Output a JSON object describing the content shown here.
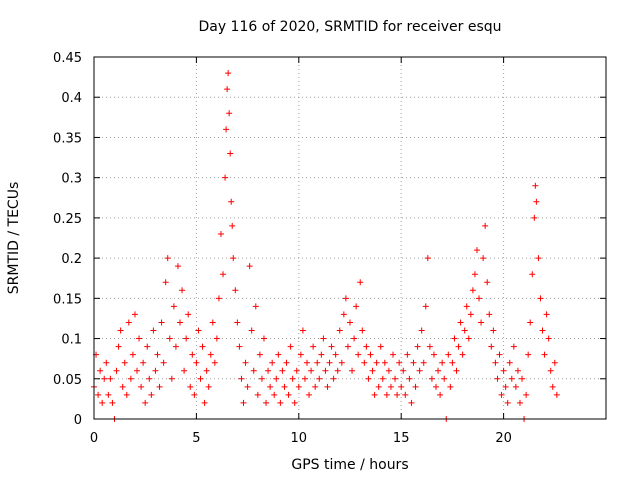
{
  "chart_data": {
    "type": "scatter",
    "title": "Day 116 of 2020, SRMTID for receiver esqu",
    "xlabel": "GPS time / hours",
    "ylabel": "SRMTID / TECUs",
    "xlim": [
      0,
      25
    ],
    "ylim": [
      0,
      0.45
    ],
    "grid": true,
    "marker": "+",
    "x_ticks": [
      {
        "value": 0,
        "label": "0"
      },
      {
        "value": 5,
        "label": "5"
      },
      {
        "value": 10,
        "label": "10"
      },
      {
        "value": 15,
        "label": "15"
      },
      {
        "value": 20,
        "label": "20"
      }
    ],
    "y_ticks": [
      {
        "value": 0,
        "label": "0"
      },
      {
        "value": 0.05,
        "label": "0.05"
      },
      {
        "value": 0.1,
        "label": "0.1"
      },
      {
        "value": 0.15,
        "label": "0.15"
      },
      {
        "value": 0.2,
        "label": "0.2"
      },
      {
        "value": 0.25,
        "label": "0.25"
      },
      {
        "value": 0.3,
        "label": "0.3"
      },
      {
        "value": 0.35,
        "label": "0.35"
      },
      {
        "value": 0.4,
        "label": "0.4"
      },
      {
        "value": 0.45,
        "label": "0.45"
      }
    ],
    "series": [
      {
        "name": "SRMTID",
        "color": "#ff0000",
        "points": [
          [
            0.0,
            0.04
          ],
          [
            0.1,
            0.08
          ],
          [
            0.2,
            0.03
          ],
          [
            0.3,
            0.06
          ],
          [
            0.4,
            0.02
          ],
          [
            0.5,
            0.05
          ],
          [
            0.6,
            0.07
          ],
          [
            0.7,
            0.03
          ],
          [
            0.8,
            0.05
          ],
          [
            0.9,
            0.02
          ],
          [
            1.0,
            0.0
          ],
          [
            1.1,
            0.06
          ],
          [
            1.2,
            0.09
          ],
          [
            1.3,
            0.11
          ],
          [
            1.4,
            0.04
          ],
          [
            1.5,
            0.07
          ],
          [
            1.6,
            0.03
          ],
          [
            1.7,
            0.12
          ],
          [
            1.8,
            0.05
          ],
          [
            1.9,
            0.08
          ],
          [
            2.0,
            0.13
          ],
          [
            2.1,
            0.06
          ],
          [
            2.2,
            0.1
          ],
          [
            2.3,
            0.04
          ],
          [
            2.4,
            0.07
          ],
          [
            2.5,
            0.02
          ],
          [
            2.6,
            0.09
          ],
          [
            2.7,
            0.05
          ],
          [
            2.8,
            0.03
          ],
          [
            2.9,
            0.11
          ],
          [
            3.0,
            0.06
          ],
          [
            3.1,
            0.08
          ],
          [
            3.2,
            0.04
          ],
          [
            3.3,
            0.12
          ],
          [
            3.4,
            0.07
          ],
          [
            3.5,
            0.17
          ],
          [
            3.6,
            0.2
          ],
          [
            3.7,
            0.1
          ],
          [
            3.8,
            0.05
          ],
          [
            3.9,
            0.14
          ],
          [
            4.0,
            0.09
          ],
          [
            4.1,
            0.19
          ],
          [
            4.2,
            0.12
          ],
          [
            4.3,
            0.16
          ],
          [
            4.4,
            0.06
          ],
          [
            4.5,
            0.1
          ],
          [
            4.6,
            0.13
          ],
          [
            4.7,
            0.04
          ],
          [
            4.8,
            0.08
          ],
          [
            4.9,
            0.03
          ],
          [
            5.0,
            0.07
          ],
          [
            5.1,
            0.11
          ],
          [
            5.2,
            0.05
          ],
          [
            5.3,
            0.09
          ],
          [
            5.4,
            0.02
          ],
          [
            5.5,
            0.06
          ],
          [
            5.6,
            0.04
          ],
          [
            5.7,
            0.08
          ],
          [
            5.8,
            0.12
          ],
          [
            5.9,
            0.07
          ],
          [
            6.0,
            0.1
          ],
          [
            6.1,
            0.15
          ],
          [
            6.2,
            0.23
          ],
          [
            6.3,
            0.18
          ],
          [
            6.4,
            0.3
          ],
          [
            6.45,
            0.36
          ],
          [
            6.5,
            0.41
          ],
          [
            6.55,
            0.43
          ],
          [
            6.6,
            0.38
          ],
          [
            6.65,
            0.33
          ],
          [
            6.7,
            0.27
          ],
          [
            6.75,
            0.24
          ],
          [
            6.8,
            0.2
          ],
          [
            6.9,
            0.16
          ],
          [
            7.0,
            0.12
          ],
          [
            7.1,
            0.09
          ],
          [
            7.2,
            0.05
          ],
          [
            7.3,
            0.02
          ],
          [
            7.4,
            0.07
          ],
          [
            7.5,
            0.04
          ],
          [
            7.6,
            0.19
          ],
          [
            7.7,
            0.11
          ],
          [
            7.8,
            0.06
          ],
          [
            7.9,
            0.14
          ],
          [
            8.0,
            0.03
          ],
          [
            8.1,
            0.08
          ],
          [
            8.2,
            0.05
          ],
          [
            8.3,
            0.1
          ],
          [
            8.4,
            0.02
          ],
          [
            8.5,
            0.06
          ],
          [
            8.6,
            0.04
          ],
          [
            8.7,
            0.07
          ],
          [
            8.8,
            0.03
          ],
          [
            8.9,
            0.05
          ],
          [
            9.0,
            0.08
          ],
          [
            9.1,
            0.02
          ],
          [
            9.2,
            0.06
          ],
          [
            9.3,
            0.04
          ],
          [
            9.4,
            0.07
          ],
          [
            9.5,
            0.03
          ],
          [
            9.6,
            0.09
          ],
          [
            9.7,
            0.05
          ],
          [
            9.8,
            0.02
          ],
          [
            9.9,
            0.06
          ],
          [
            10.0,
            0.04
          ],
          [
            10.1,
            0.08
          ],
          [
            10.2,
            0.11
          ],
          [
            10.3,
            0.05
          ],
          [
            10.4,
            0.07
          ],
          [
            10.5,
            0.03
          ],
          [
            10.6,
            0.06
          ],
          [
            10.7,
            0.09
          ],
          [
            10.8,
            0.04
          ],
          [
            10.9,
            0.07
          ],
          [
            11.0,
            0.05
          ],
          [
            11.1,
            0.08
          ],
          [
            11.2,
            0.1
          ],
          [
            11.3,
            0.06
          ],
          [
            11.4,
            0.04
          ],
          [
            11.5,
            0.07
          ],
          [
            11.6,
            0.09
          ],
          [
            11.7,
            0.05
          ],
          [
            11.8,
            0.08
          ],
          [
            11.9,
            0.06
          ],
          [
            12.0,
            0.11
          ],
          [
            12.1,
            0.07
          ],
          [
            12.2,
            0.13
          ],
          [
            12.3,
            0.15
          ],
          [
            12.4,
            0.09
          ],
          [
            12.5,
            0.12
          ],
          [
            12.6,
            0.06
          ],
          [
            12.7,
            0.1
          ],
          [
            12.8,
            0.14
          ],
          [
            12.9,
            0.08
          ],
          [
            13.0,
            0.17
          ],
          [
            13.1,
            0.11
          ],
          [
            13.2,
            0.07
          ],
          [
            13.3,
            0.09
          ],
          [
            13.4,
            0.05
          ],
          [
            13.5,
            0.08
          ],
          [
            13.6,
            0.06
          ],
          [
            13.7,
            0.03
          ],
          [
            13.8,
            0.07
          ],
          [
            13.9,
            0.04
          ],
          [
            14.0,
            0.09
          ],
          [
            14.1,
            0.05
          ],
          [
            14.2,
            0.07
          ],
          [
            14.3,
            0.03
          ],
          [
            14.4,
            0.06
          ],
          [
            14.5,
            0.04
          ],
          [
            14.6,
            0.08
          ],
          [
            14.7,
            0.05
          ],
          [
            14.8,
            0.03
          ],
          [
            14.9,
            0.07
          ],
          [
            15.0,
            0.04
          ],
          [
            15.1,
            0.06
          ],
          [
            15.2,
            0.03
          ],
          [
            15.3,
            0.08
          ],
          [
            15.4,
            0.05
          ],
          [
            15.5,
            0.02
          ],
          [
            15.6,
            0.07
          ],
          [
            15.7,
            0.04
          ],
          [
            15.8,
            0.09
          ],
          [
            15.9,
            0.06
          ],
          [
            16.0,
            0.11
          ],
          [
            16.1,
            0.07
          ],
          [
            16.2,
            0.14
          ],
          [
            16.3,
            0.2
          ],
          [
            16.4,
            0.09
          ],
          [
            16.5,
            0.05
          ],
          [
            16.6,
            0.08
          ],
          [
            16.7,
            0.04
          ],
          [
            16.8,
            0.06
          ],
          [
            16.9,
            0.03
          ],
          [
            17.0,
            0.07
          ],
          [
            17.1,
            0.05
          ],
          [
            17.2,
            0.0
          ],
          [
            17.3,
            0.08
          ],
          [
            17.4,
            0.04
          ],
          [
            17.5,
            0.07
          ],
          [
            17.6,
            0.1
          ],
          [
            17.7,
            0.06
          ],
          [
            17.8,
            0.09
          ],
          [
            17.9,
            0.12
          ],
          [
            18.0,
            0.08
          ],
          [
            18.1,
            0.11
          ],
          [
            18.2,
            0.14
          ],
          [
            18.3,
            0.1
          ],
          [
            18.4,
            0.13
          ],
          [
            18.5,
            0.16
          ],
          [
            18.6,
            0.18
          ],
          [
            18.7,
            0.21
          ],
          [
            18.8,
            0.15
          ],
          [
            18.9,
            0.12
          ],
          [
            19.0,
            0.2
          ],
          [
            19.1,
            0.24
          ],
          [
            19.2,
            0.17
          ],
          [
            19.3,
            0.13
          ],
          [
            19.4,
            0.09
          ],
          [
            19.5,
            0.11
          ],
          [
            19.6,
            0.07
          ],
          [
            19.7,
            0.05
          ],
          [
            19.8,
            0.08
          ],
          [
            19.9,
            0.03
          ],
          [
            20.0,
            0.06
          ],
          [
            20.1,
            0.04
          ],
          [
            20.2,
            0.02
          ],
          [
            20.3,
            0.07
          ],
          [
            20.4,
            0.05
          ],
          [
            20.5,
            0.09
          ],
          [
            20.6,
            0.04
          ],
          [
            20.7,
            0.06
          ],
          [
            20.8,
            0.02
          ],
          [
            20.9,
            0.05
          ],
          [
            21.0,
            0.0
          ],
          [
            21.1,
            0.03
          ],
          [
            21.2,
            0.08
          ],
          [
            21.3,
            0.12
          ],
          [
            21.4,
            0.18
          ],
          [
            21.5,
            0.25
          ],
          [
            21.55,
            0.29
          ],
          [
            21.6,
            0.27
          ],
          [
            21.7,
            0.2
          ],
          [
            21.8,
            0.15
          ],
          [
            21.9,
            0.11
          ],
          [
            22.0,
            0.08
          ],
          [
            22.1,
            0.13
          ],
          [
            22.2,
            0.1
          ],
          [
            22.3,
            0.06
          ],
          [
            22.4,
            0.04
          ],
          [
            22.5,
            0.07
          ],
          [
            22.6,
            0.03
          ]
        ]
      }
    ]
  }
}
